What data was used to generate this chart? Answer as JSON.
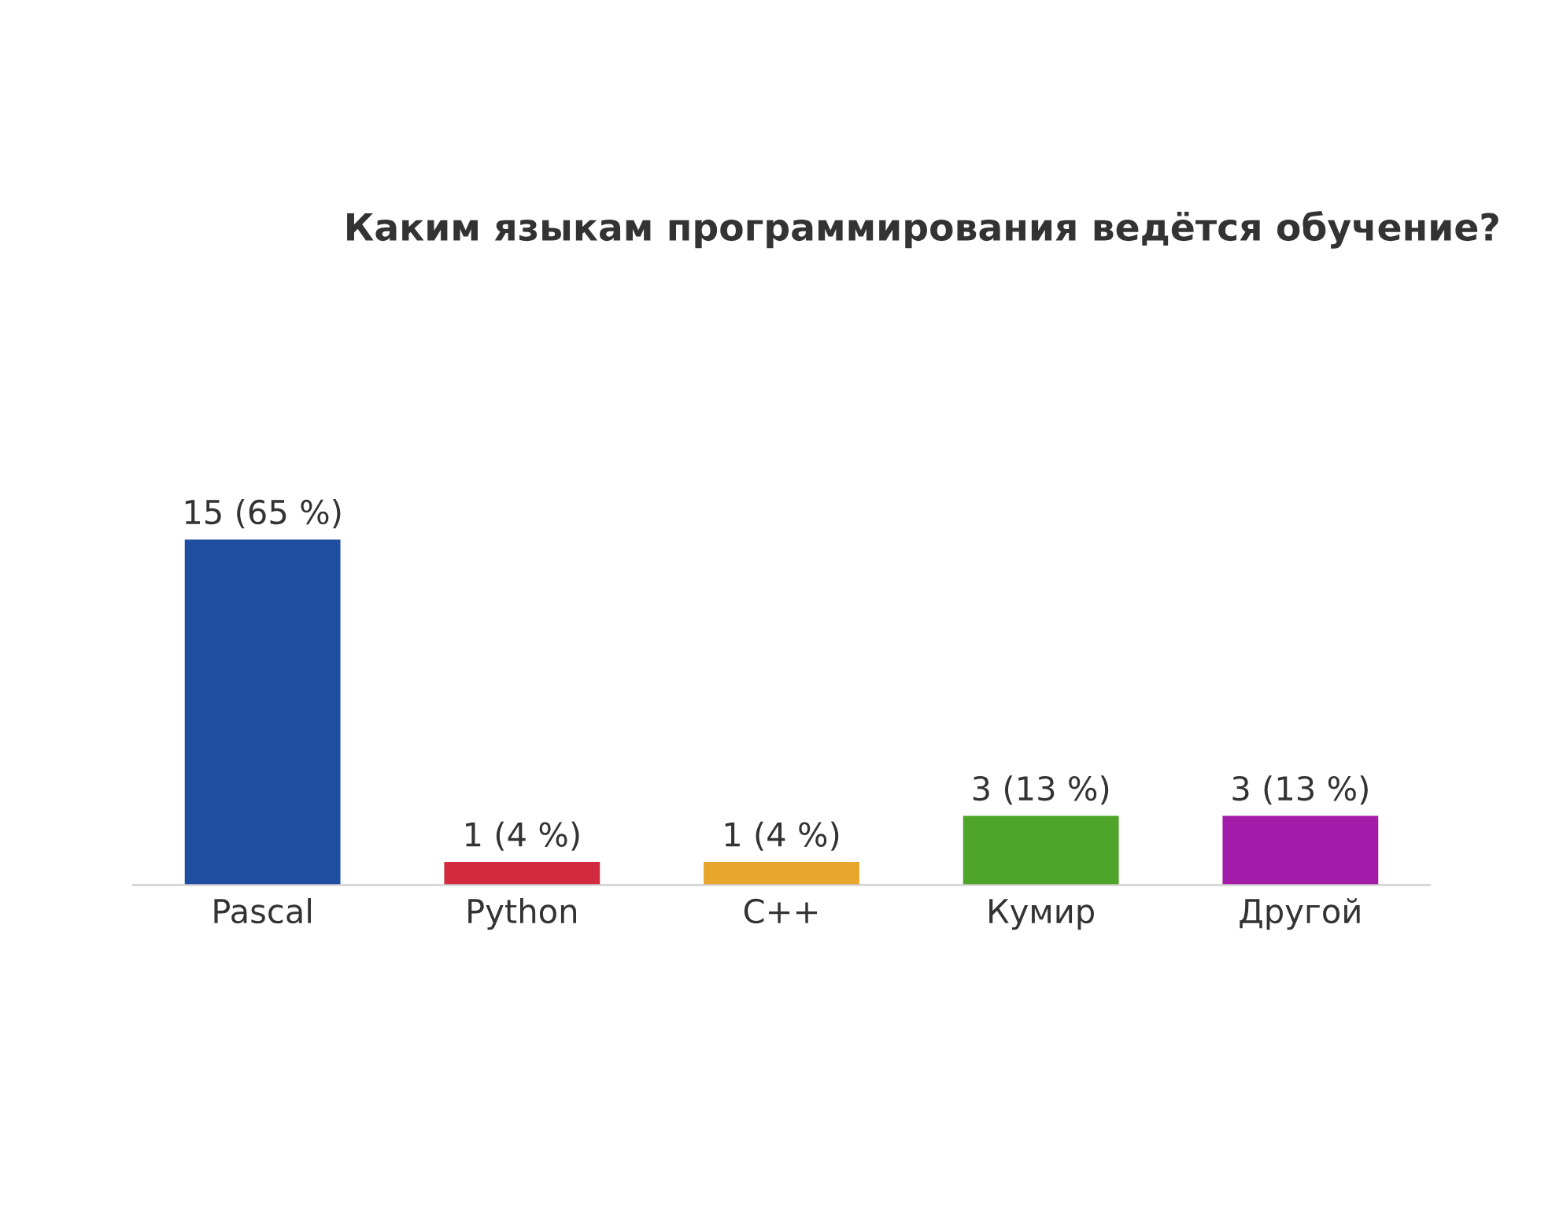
{
  "chart_data": {
    "type": "bar",
    "title": "Каким языкам программирования ведётся обучение?",
    "categories": [
      "Pascal",
      "Python",
      "C++",
      "Кумир",
      "Другой"
    ],
    "values": [
      15,
      1,
      1,
      3,
      3
    ],
    "colors": [
      "#1f4d9f",
      "#d22a3e",
      "#e8a62c",
      "#4ea52a",
      "#a21ca9"
    ],
    "value_labels": [
      "15 (65 %)",
      "1 (4 %)",
      "1 (4 %)",
      "3 (13 %)",
      "3 (13 %)"
    ],
    "grid": false,
    "legend": false
  }
}
